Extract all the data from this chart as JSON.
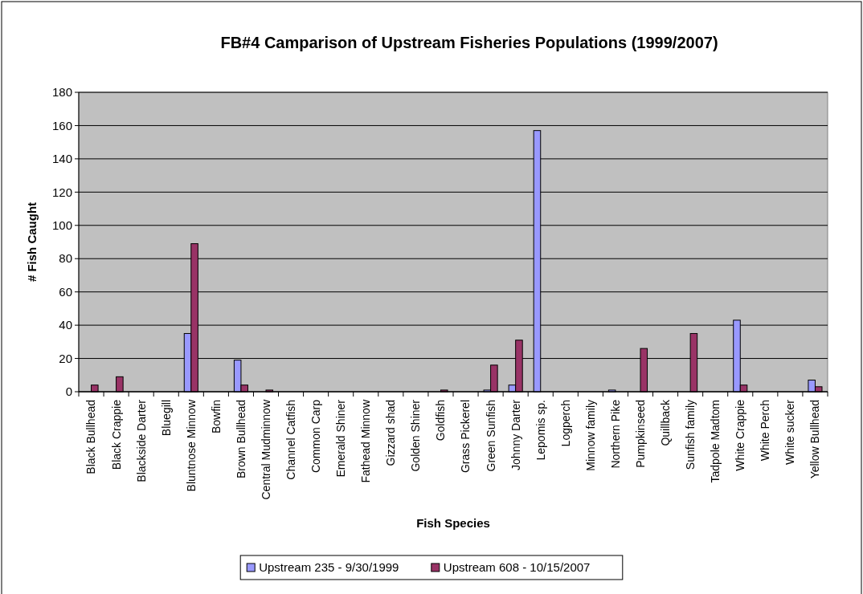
{
  "chart_data": {
    "type": "bar",
    "title": "FB#4 Camparison of Upstream Fisheries Populations (1999/2007)",
    "xlabel": "Fish Species",
    "ylabel": "# Fish Caught",
    "categories": [
      "Black Bullhead",
      "Black Crappie",
      "Blackside Darter",
      "Bluegill",
      "Bluntnose Minnow",
      "Bowfin",
      "Brown Bullhead",
      "Central Mudminnow",
      "Channel Catfish",
      "Common Carp",
      "Emerald Shiner",
      "Fathead Minnow",
      "Gizzard shad",
      "Golden Shiner",
      "Goldfish",
      "Grass Pickerel",
      "Green Sunfish",
      "Johnny Darter",
      "Lepomis sp.",
      "Logperch",
      "Minnow family",
      "Northern Pike",
      "Pumpkinseed",
      "Quillback",
      "Sunfish family",
      "Tadpole Madtom",
      "White Crappie",
      "White Perch",
      "White sucker",
      "Yellow Bullhead"
    ],
    "series": [
      {
        "name": "Upstream 235 - 9/30/1999",
        "color": "#9999ff",
        "values": [
          0,
          0,
          0,
          0,
          35,
          0,
          19,
          0,
          0,
          0,
          0,
          0,
          0,
          0,
          0,
          0,
          1,
          4,
          157,
          0,
          0,
          1,
          0,
          0,
          0,
          0,
          43,
          0,
          0,
          7
        ]
      },
      {
        "name": "Upstream 608 - 10/15/2007",
        "color": "#993366",
        "values": [
          4,
          9,
          0,
          0,
          89,
          0,
          4,
          1,
          0,
          0,
          0,
          0,
          0,
          0,
          1,
          0,
          16,
          31,
          0,
          0,
          0,
          0,
          26,
          0,
          35,
          0,
          4,
          0,
          0,
          3
        ]
      }
    ],
    "ylim": [
      0,
      180
    ],
    "yticks": [
      0,
      20,
      40,
      60,
      80,
      100,
      120,
      140,
      160,
      180
    ],
    "grid": "y",
    "legend": "bottom"
  }
}
